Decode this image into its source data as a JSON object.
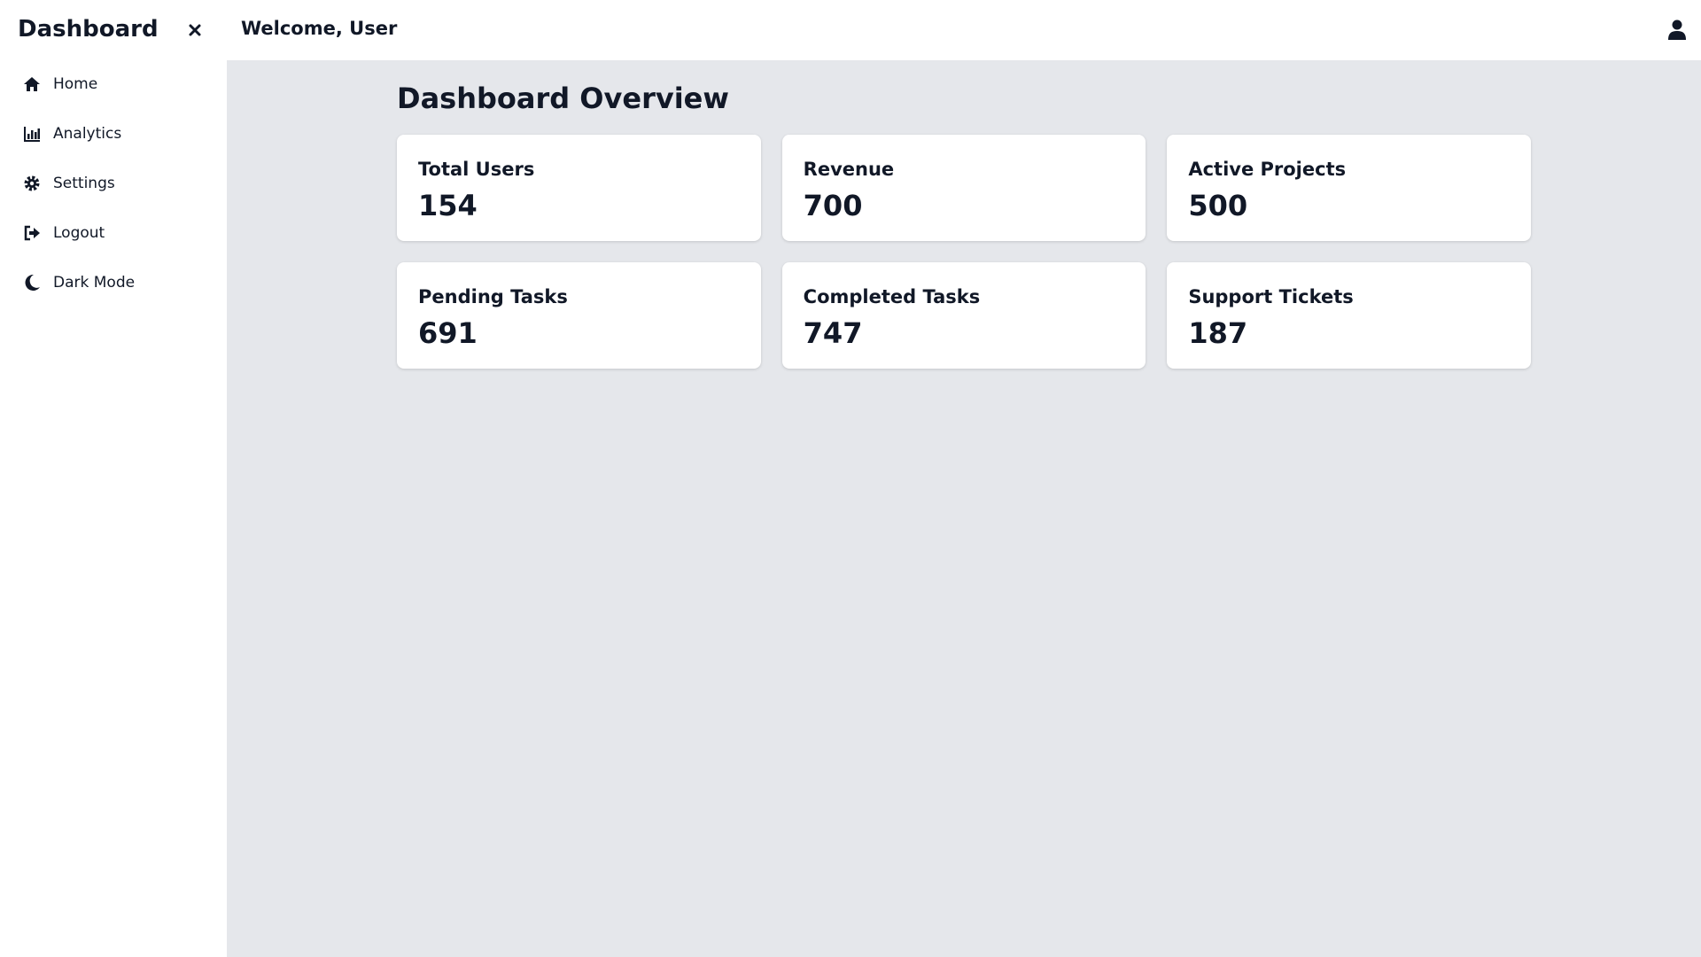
{
  "sidebar": {
    "title": "Dashboard",
    "nav": [
      "Home",
      "Analytics",
      "Settings",
      "Logout",
      "Dark Mode"
    ]
  },
  "header": {
    "welcome": "Welcome, User"
  },
  "main": {
    "title": "Dashboard Overview",
    "cards": [
      {
        "label": "Total Users",
        "value": 154
      },
      {
        "label": "Revenue",
        "value": 700
      },
      {
        "label": "Active Projects",
        "value": 500
      },
      {
        "label": "Pending Tasks",
        "value": 691
      },
      {
        "label": "Completed Tasks",
        "value": 747
      },
      {
        "label": "Support Tickets",
        "value": 187
      }
    ]
  }
}
